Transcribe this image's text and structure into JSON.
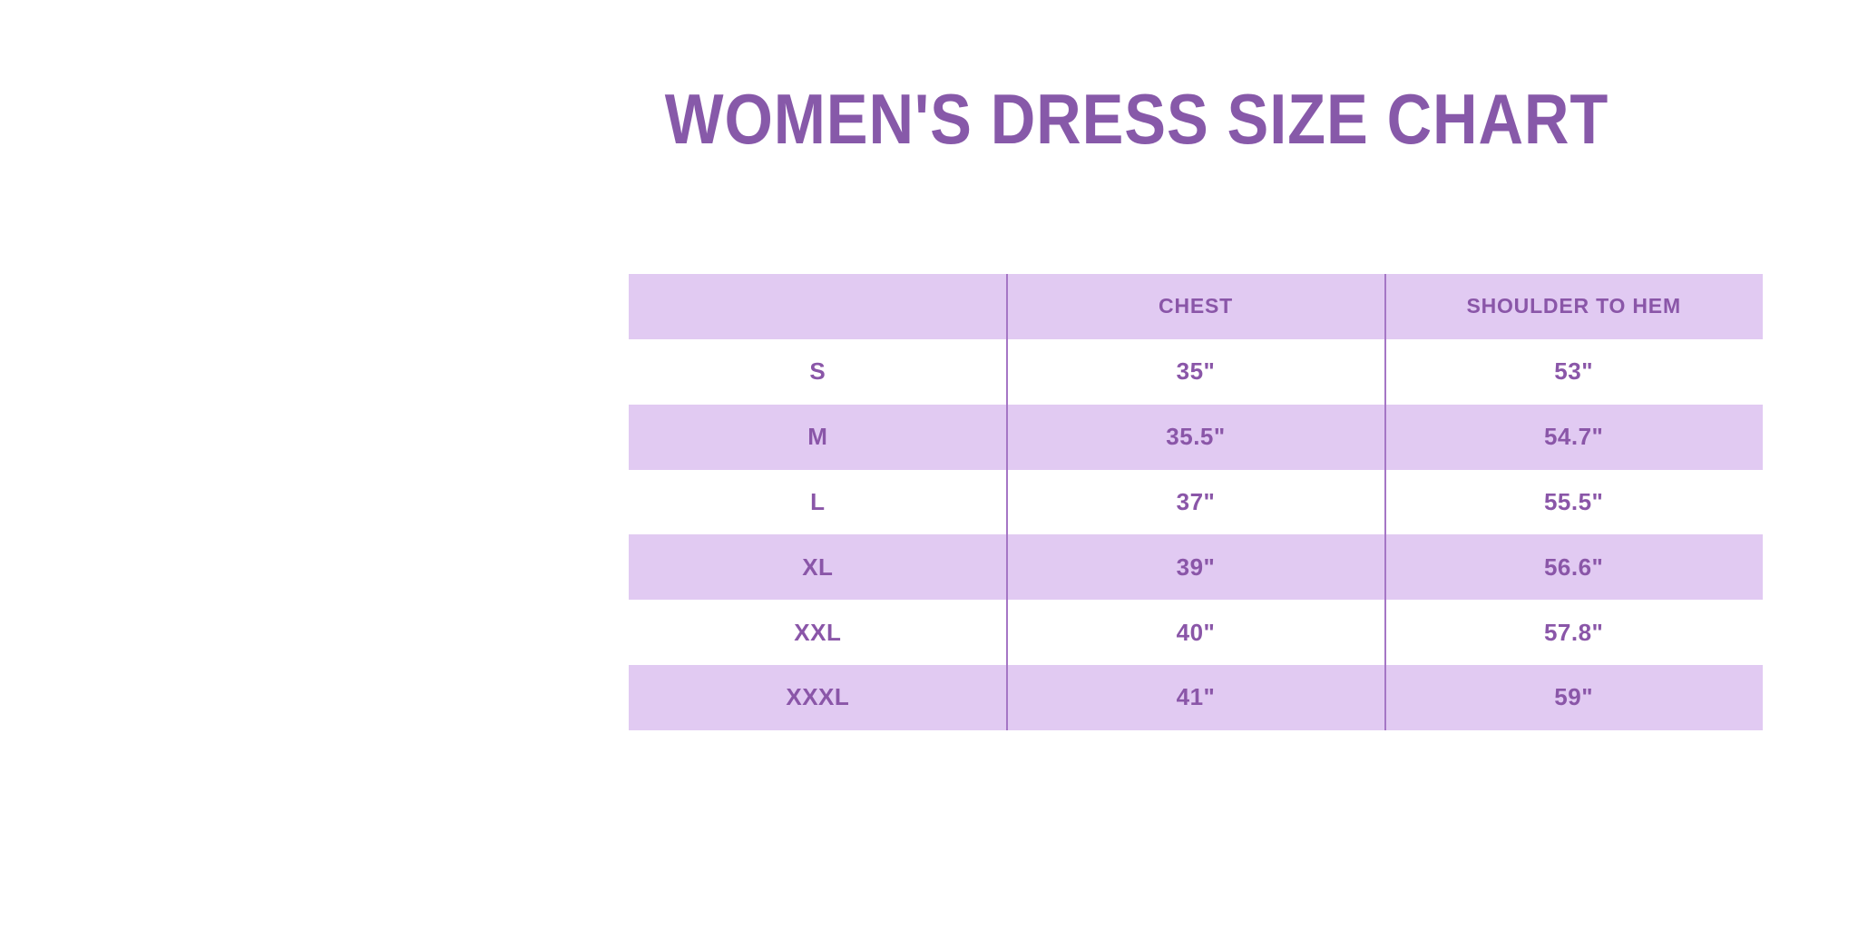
{
  "title": {
    "text": "WOMEN'S DRESS SIZE CHART"
  },
  "colors": {
    "background": "#ffffff",
    "title_text": "#8759a9",
    "table_text": "#8a56a8",
    "row_band": "#e1caf2",
    "column_divider": "#a576c5"
  },
  "table": {
    "columns": [
      "",
      "CHEST",
      "SHOULDER TO HEM"
    ],
    "rows": [
      {
        "size": "S",
        "chest": "35\"",
        "hem": "53\""
      },
      {
        "size": "M",
        "chest": "35.5\"",
        "hem": "54.7\""
      },
      {
        "size": "L",
        "chest": "37\"",
        "hem": "55.5\""
      },
      {
        "size": "XL",
        "chest": "39\"",
        "hem": "56.6\""
      },
      {
        "size": "XXL",
        "chest": "40\"",
        "hem": "57.8\""
      },
      {
        "size": "XXXL",
        "chest": "41\"",
        "hem": "59\""
      }
    ]
  },
  "chart_data": {
    "type": "table",
    "title": "WOMEN'S DRESS SIZE CHART",
    "columns": [
      "",
      "CHEST",
      "SHOULDER TO HEM"
    ],
    "rows": [
      [
        "S",
        "35\"",
        "53\""
      ],
      [
        "M",
        "35.5\"",
        "54.7\""
      ],
      [
        "L",
        "37\"",
        "55.5\""
      ],
      [
        "XL",
        "39\"",
        "56.6\""
      ],
      [
        "XXL",
        "40\"",
        "57.8\""
      ],
      [
        "XXXL",
        "41\"",
        "59\""
      ]
    ]
  }
}
